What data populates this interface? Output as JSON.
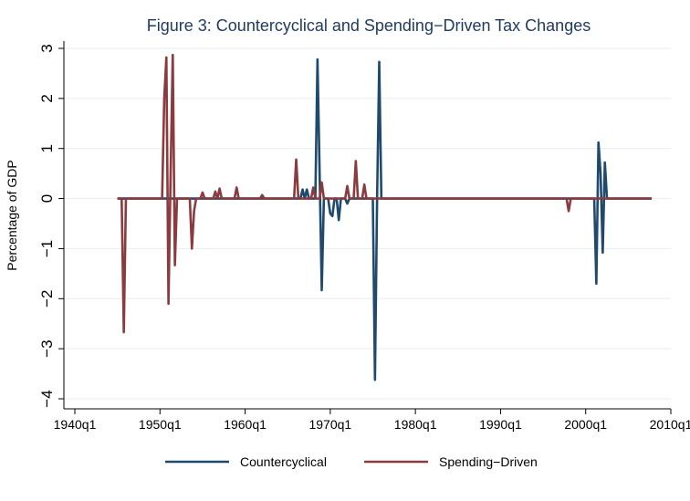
{
  "chart_data": {
    "type": "line",
    "title": "Figure 3: Countercyclical and Spending−Driven Tax Changes",
    "xlabel": "",
    "ylabel": "Percentage of GDP",
    "xlim": [
      1940,
      2010
    ],
    "ylim": [
      -4,
      3
    ],
    "x_ticks": [
      {
        "value": 1940,
        "label": "1940q1"
      },
      {
        "value": 1950,
        "label": "1950q1"
      },
      {
        "value": 1960,
        "label": "1960q1"
      },
      {
        "value": 1970,
        "label": "1970q1"
      },
      {
        "value": 1980,
        "label": "1980q1"
      },
      {
        "value": 1990,
        "label": "1990q1"
      },
      {
        "value": 2000,
        "label": "2000q1"
      },
      {
        "value": 2010,
        "label": "2010q1"
      }
    ],
    "y_ticks": [
      {
        "value": -4,
        "label": "−4"
      },
      {
        "value": -3,
        "label": "−3"
      },
      {
        "value": -2,
        "label": "−2"
      },
      {
        "value": -1,
        "label": "−1"
      },
      {
        "value": 0,
        "label": "0"
      },
      {
        "value": 1,
        "label": "1"
      },
      {
        "value": 2,
        "label": "2"
      },
      {
        "value": 3,
        "label": "3"
      }
    ],
    "grid": true,
    "legend_position": "bottom",
    "series": [
      {
        "name": "Countercyclical",
        "color": "#1f4a6e",
        "points": [
          [
            1945.0,
            0
          ],
          [
            1966.5,
            0
          ],
          [
            1966.75,
            0.18
          ],
          [
            1967.0,
            0
          ],
          [
            1967.25,
            0.18
          ],
          [
            1967.5,
            0
          ],
          [
            1968.25,
            0
          ],
          [
            1968.5,
            2.78
          ],
          [
            1968.75,
            0.5
          ],
          [
            1969.0,
            -1.83
          ],
          [
            1969.25,
            0
          ],
          [
            1969.75,
            0
          ],
          [
            1970.0,
            -0.3
          ],
          [
            1970.25,
            -0.35
          ],
          [
            1970.5,
            0
          ],
          [
            1970.75,
            0
          ],
          [
            1971.0,
            -0.43
          ],
          [
            1971.25,
            0
          ],
          [
            1971.75,
            0
          ],
          [
            1972.0,
            -0.1
          ],
          [
            1972.25,
            0
          ],
          [
            1975.0,
            0
          ],
          [
            1975.25,
            -3.62
          ],
          [
            1975.5,
            0
          ],
          [
            1975.75,
            2.73
          ],
          [
            1976.0,
            0
          ],
          [
            2001.0,
            0
          ],
          [
            2001.25,
            -1.7
          ],
          [
            2001.5,
            1.12
          ],
          [
            2001.75,
            0.5
          ],
          [
            2002.0,
            -1.08
          ],
          [
            2002.25,
            0.72
          ],
          [
            2002.5,
            0
          ],
          [
            2007.75,
            0
          ]
        ]
      },
      {
        "name": "Spending−Driven",
        "color": "#8b3a3e",
        "points": [
          [
            1945.0,
            0
          ],
          [
            1945.5,
            0
          ],
          [
            1945.75,
            -2.67
          ],
          [
            1946.0,
            0
          ],
          [
            1950.25,
            0
          ],
          [
            1950.5,
            2.0
          ],
          [
            1950.75,
            2.82
          ],
          [
            1951.0,
            -2.1
          ],
          [
            1951.25,
            0.5
          ],
          [
            1951.5,
            2.87
          ],
          [
            1951.75,
            -1.33
          ],
          [
            1952.0,
            0
          ],
          [
            1953.5,
            0
          ],
          [
            1953.75,
            -1.0
          ],
          [
            1954.0,
            -0.25
          ],
          [
            1954.25,
            0
          ],
          [
            1954.75,
            0
          ],
          [
            1955.0,
            0.12
          ],
          [
            1955.25,
            0
          ],
          [
            1956.25,
            0
          ],
          [
            1956.5,
            0.14
          ],
          [
            1956.75,
            0
          ],
          [
            1957.0,
            0.2
          ],
          [
            1957.25,
            0
          ],
          [
            1958.75,
            0
          ],
          [
            1959.0,
            0.22
          ],
          [
            1959.25,
            0
          ],
          [
            1961.75,
            0
          ],
          [
            1962.0,
            0.07
          ],
          [
            1962.25,
            0
          ],
          [
            1965.75,
            0
          ],
          [
            1966.0,
            0.78
          ],
          [
            1966.25,
            0
          ],
          [
            1967.75,
            0
          ],
          [
            1968.0,
            0.22
          ],
          [
            1968.25,
            0
          ],
          [
            1968.75,
            0
          ],
          [
            1969.0,
            0.32
          ],
          [
            1969.25,
            0
          ],
          [
            1971.75,
            0
          ],
          [
            1972.0,
            0.25
          ],
          [
            1972.25,
            0
          ],
          [
            1972.75,
            0
          ],
          [
            1973.0,
            0.75
          ],
          [
            1973.25,
            0
          ],
          [
            1973.75,
            0
          ],
          [
            1974.0,
            0.28
          ],
          [
            1974.25,
            0
          ],
          [
            1997.75,
            0
          ],
          [
            1998.0,
            -0.25
          ],
          [
            1998.25,
            0
          ],
          [
            2007.75,
            0
          ]
        ]
      }
    ]
  }
}
